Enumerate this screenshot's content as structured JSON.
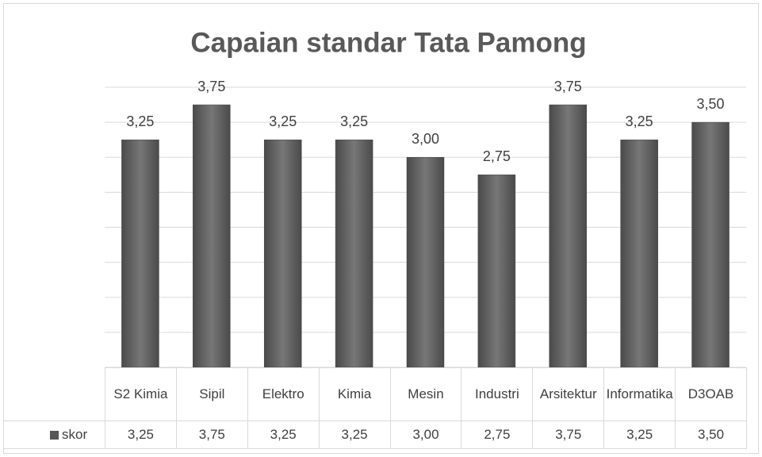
{
  "chart_data": {
    "type": "bar",
    "title": "Capaian standar Tata Pamong",
    "categories": [
      "S2 Kimia",
      "Sipil",
      "Elektro",
      "Kimia",
      "Mesin",
      "Industri",
      "Arsitektur",
      "Informatika",
      "D3OAB"
    ],
    "series": [
      {
        "name": "skor",
        "color": "#666666",
        "values": [
          3.25,
          3.75,
          3.25,
          3.25,
          3.0,
          2.75,
          3.75,
          3.25,
          3.5
        ],
        "value_labels": [
          "3,25",
          "3,75",
          "3,25",
          "3,25",
          "3,00",
          "2,75",
          "3,75",
          "3,25",
          "3,50"
        ]
      }
    ],
    "ylim": [
      0,
      4
    ],
    "yticks": [
      0,
      0.5,
      1,
      1.5,
      2,
      2.5,
      3,
      3.5,
      4
    ],
    "grid": true,
    "data_table": true
  }
}
